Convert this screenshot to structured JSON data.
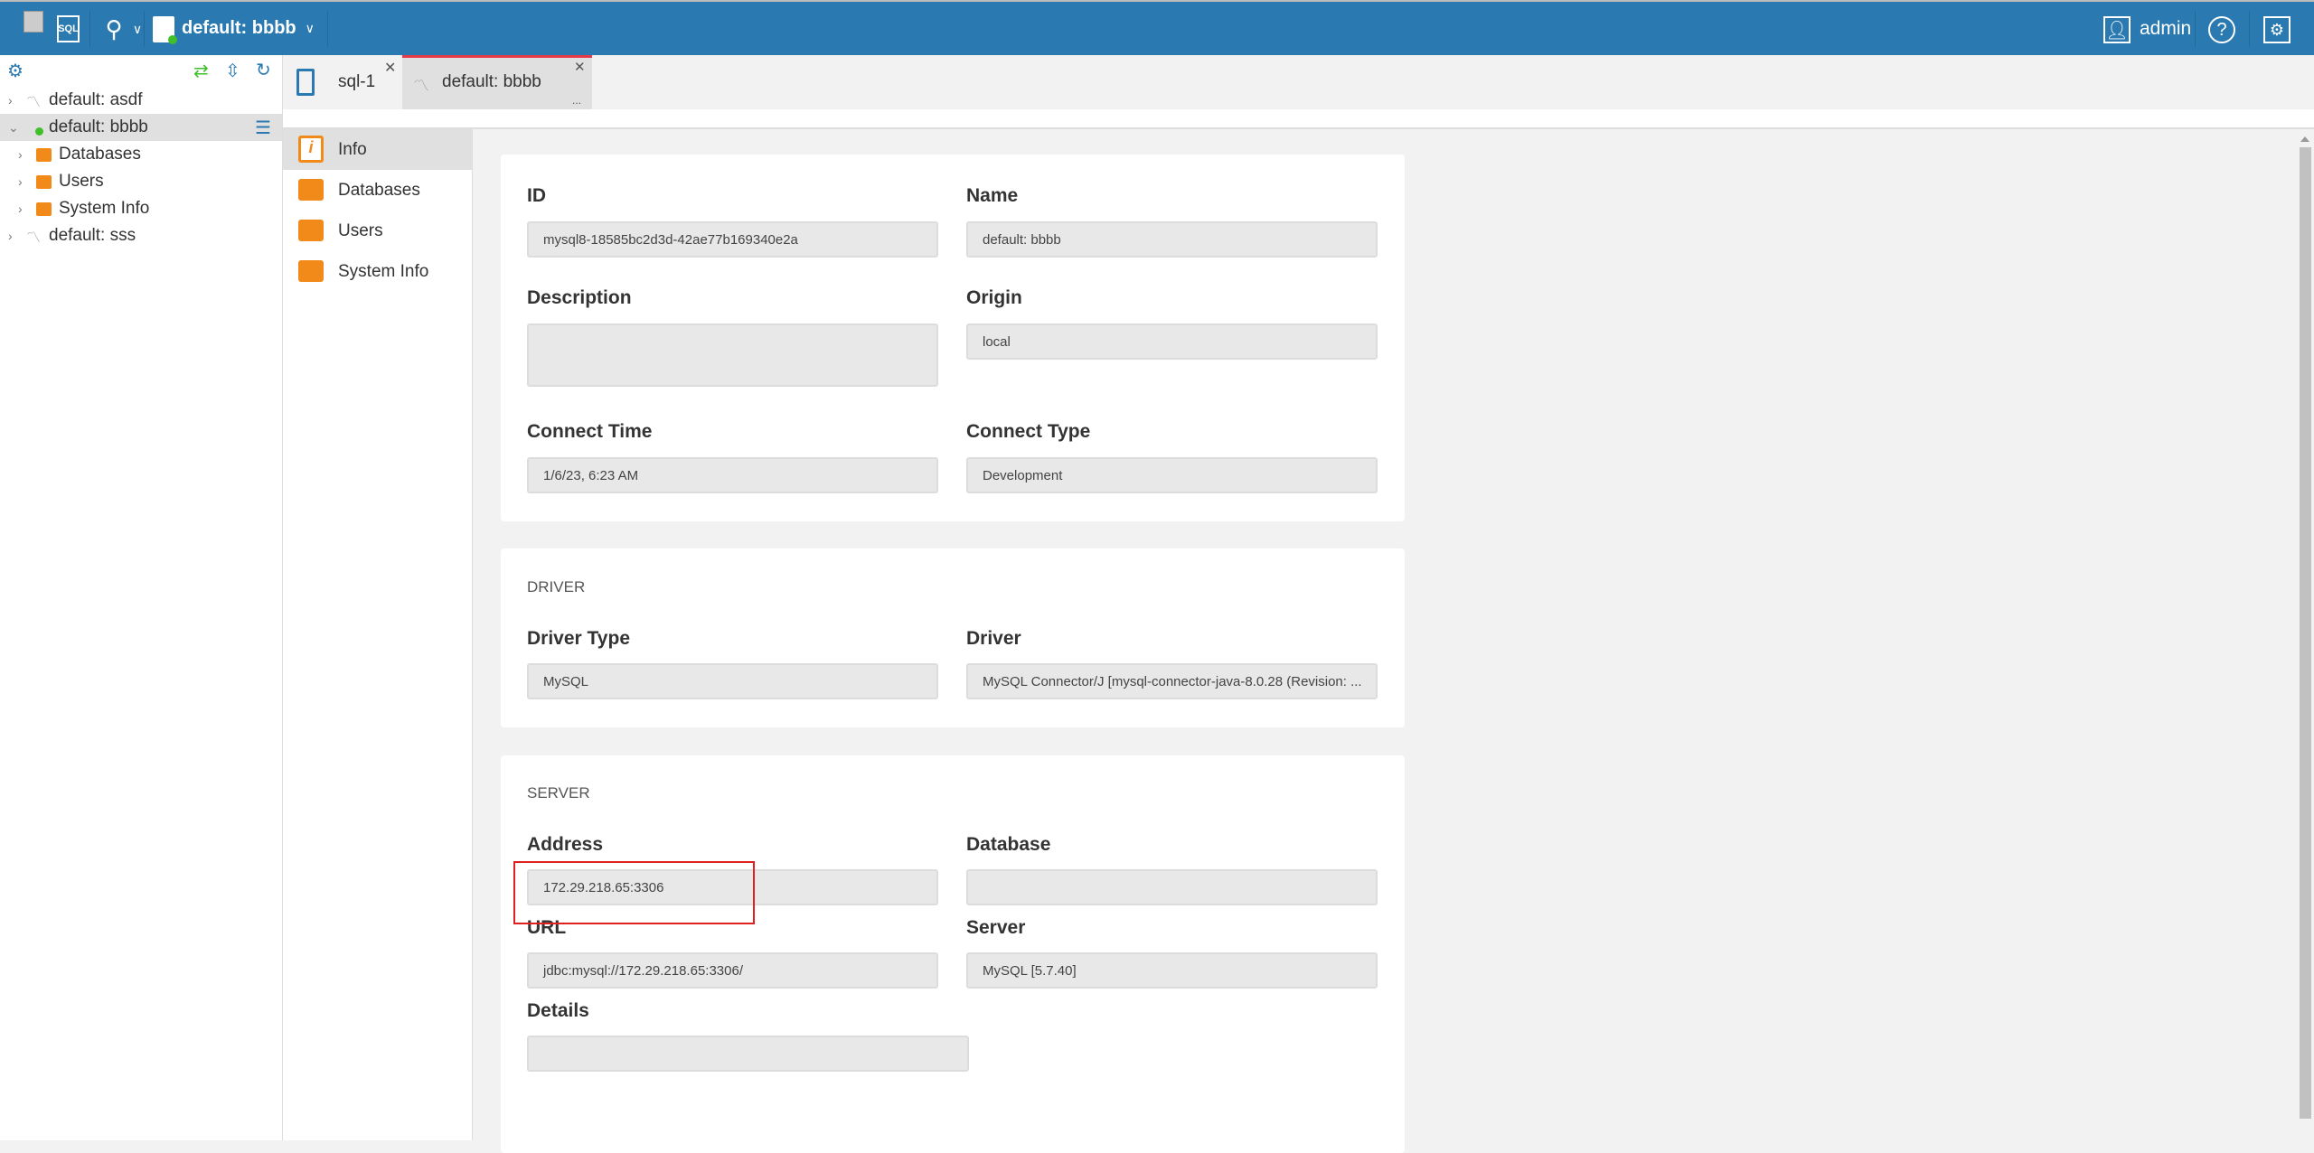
{
  "topbar": {
    "connection_label": "default: bbbb",
    "user": "admin",
    "sql_label": "SQL"
  },
  "sidebar": {
    "items": [
      {
        "label": "default: asdf",
        "level": 0,
        "icon": "mysql-dolphin-icon"
      },
      {
        "label": "default: bbbb",
        "level": 0,
        "icon": "connected-dot-icon",
        "selected": true
      },
      {
        "label": "Databases",
        "level": 1,
        "icon": "databases-folder-icon"
      },
      {
        "label": "Users",
        "level": 1,
        "icon": "users-folder-icon"
      },
      {
        "label": "System Info",
        "level": 1,
        "icon": "info-folder-icon"
      },
      {
        "label": "default: sss",
        "level": 0,
        "icon": "mysql-dolphin-icon"
      }
    ]
  },
  "tabs": [
    {
      "label": "sql-1",
      "active": false
    },
    {
      "label": "default: bbbb",
      "active": true,
      "more": "..."
    }
  ],
  "subnav": [
    {
      "label": "Info",
      "selected": true
    },
    {
      "label": "Databases"
    },
    {
      "label": "Users"
    },
    {
      "label": "System Info"
    }
  ],
  "general": {
    "id_label": "ID",
    "id": "mysql8-18585bc2d3d-42ae77b169340e2a",
    "name_label": "Name",
    "name": "default: bbbb",
    "description_label": "Description",
    "description": "",
    "origin_label": "Origin",
    "origin": "local",
    "connect_time_label": "Connect Time",
    "connect_time": "1/6/23, 6:23 AM",
    "connect_type_label": "Connect Type",
    "connect_type": "Development"
  },
  "driver": {
    "section": "DRIVER",
    "driver_type_label": "Driver Type",
    "driver_type": "MySQL",
    "driver_label": "Driver",
    "driver": "MySQL Connector/J [mysql-connector-java-8.0.28 (Revision: ..."
  },
  "server": {
    "section": "SERVER",
    "address_label": "Address",
    "address": "172.29.218.65:3306",
    "database_label": "Database",
    "database": "",
    "url_label": "URL",
    "url": "jdbc:mysql://172.29.218.65:3306/",
    "server_label": "Server",
    "server": "MySQL [5.7.40]",
    "details_label": "Details",
    "details": ""
  },
  "colors": {
    "topbar": "#2a7ab1",
    "accent_orange": "#f28a1a",
    "active_tab_border": "#e8394a",
    "highlight_box": "#e02020",
    "connected": "#3fbf2a"
  }
}
